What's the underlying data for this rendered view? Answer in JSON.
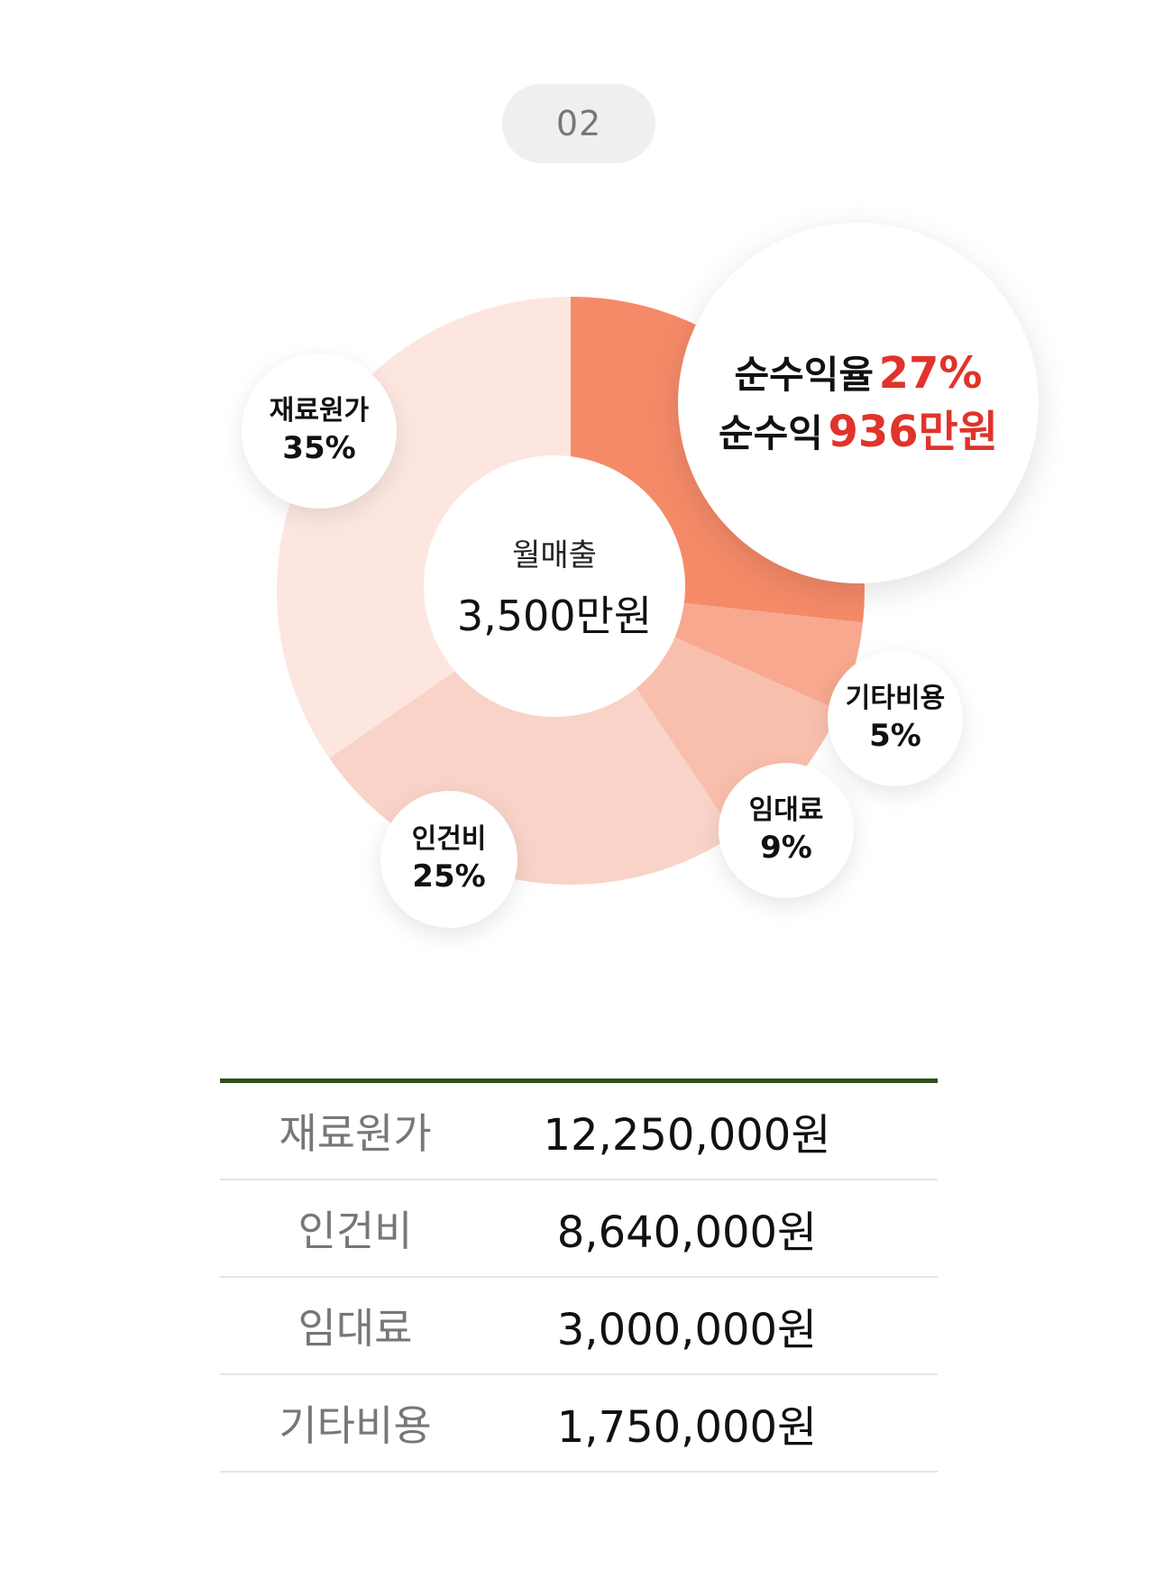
{
  "badge": "02",
  "chart_data": {
    "type": "pie",
    "categories": [
      "순수익",
      "기타비용",
      "임대료",
      "인건비",
      "재료원가"
    ],
    "values": [
      27,
      5,
      9,
      25,
      35
    ],
    "unit": "%",
    "center": {
      "title": "월매출",
      "value": "3,500만원"
    },
    "colors": [
      "#f58a68",
      "#f7a88e",
      "#f9bfad",
      "#fad3c8",
      "#fde6e0"
    ]
  },
  "labels": {
    "material": {
      "name": "재료원가",
      "pct": "35%"
    },
    "labor": {
      "name": "인건비",
      "pct": "25%"
    },
    "rent": {
      "name": "임대료",
      "pct": "9%"
    },
    "other": {
      "name": "기타비용",
      "pct": "5%"
    }
  },
  "profit": {
    "rate_label": "순수익율",
    "rate_value": "27%",
    "amount_label": "순수익",
    "amount_value": "936만원"
  },
  "table": [
    {
      "item": "재료원가",
      "amount": "12,250,000원"
    },
    {
      "item": "인건비",
      "amount": "8,640,000원"
    },
    {
      "item": "임대료",
      "amount": "3,000,000원"
    },
    {
      "item": "기타비용",
      "amount": "1,750,000원"
    }
  ]
}
